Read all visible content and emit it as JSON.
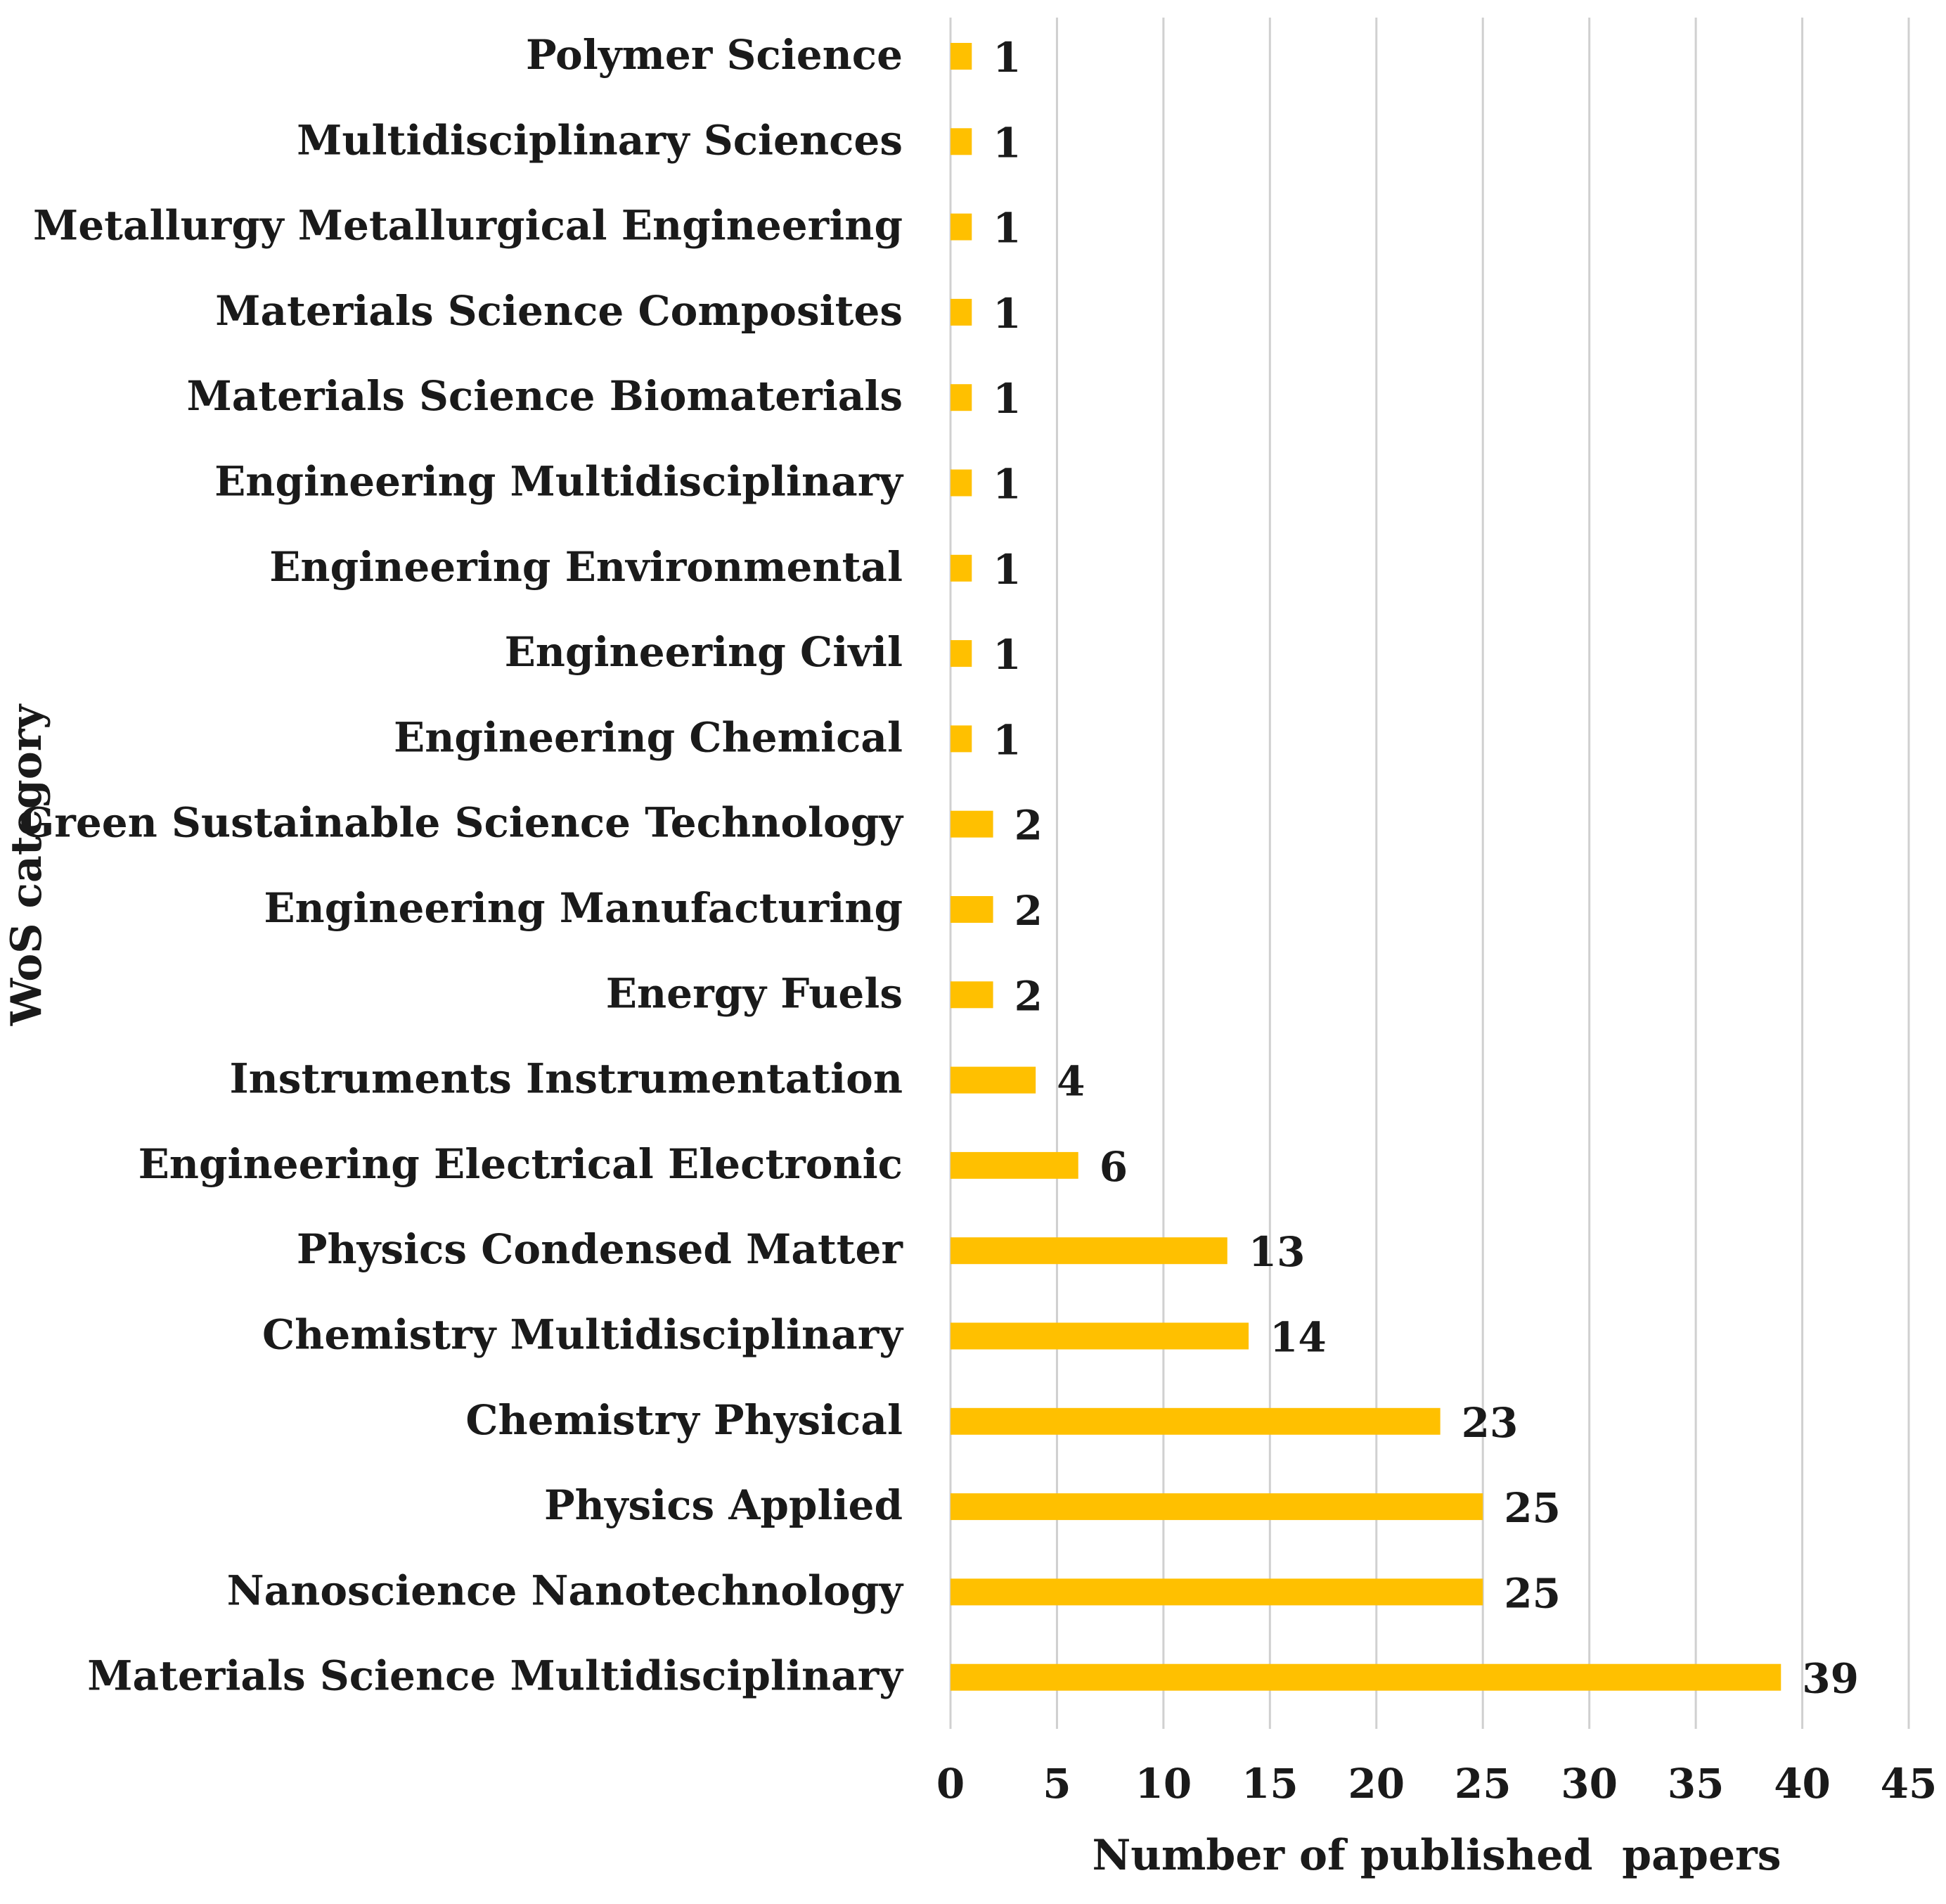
{
  "chart_data": {
    "type": "bar",
    "orientation": "horizontal",
    "title": "",
    "xlabel": "Number of published  papers",
    "ylabel": "WoS category",
    "xlim": [
      0,
      45
    ],
    "xticks": [
      "0",
      "5",
      "10",
      "15",
      "20",
      "25",
      "30",
      "35",
      "40",
      "45"
    ],
    "xtick_values": [
      0,
      5,
      10,
      15,
      20,
      25,
      30,
      35,
      40,
      45
    ],
    "grid": "vertical",
    "bar_color": "#FFC000",
    "categories": [
      "Polymer Science",
      "Multidisciplinary Sciences",
      "Metallurgy Metallurgical Engineering",
      "Materials Science Composites",
      "Materials Science Biomaterials",
      "Engineering Multidisciplinary",
      "Engineering Environmental",
      "Engineering Civil",
      "Engineering Chemical",
      "Green Sustainable Science Technology",
      "Engineering Manufacturing",
      "Energy Fuels",
      "Instruments Instrumentation",
      "Engineering Electrical Electronic",
      "Physics Condensed Matter",
      "Chemistry Multidisciplinary",
      "Chemistry Physical",
      "Physics Applied",
      "Nanoscience Nanotechnology",
      "Materials Science Multidisciplinary"
    ],
    "values": [
      1,
      1,
      1,
      1,
      1,
      1,
      1,
      1,
      1,
      2,
      2,
      2,
      4,
      6,
      13,
      14,
      23,
      25,
      25,
      39
    ],
    "data_labels": [
      "1",
      "1",
      "1",
      "1",
      "1",
      "1",
      "1",
      "1",
      "1",
      "2",
      "2",
      "2",
      "4",
      "6",
      "13",
      "14",
      "23",
      "25",
      "25",
      "39"
    ]
  }
}
